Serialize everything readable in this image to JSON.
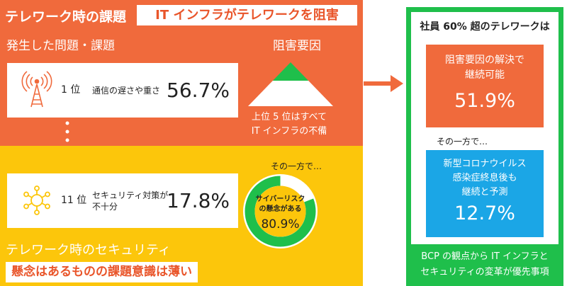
{
  "left": {
    "title": "テレワーク時の課題",
    "title_badge": "IT インフラがテレワークを阻害",
    "subtitle": "発生した問題・課題",
    "cause_label": "阻害要因",
    "items": [
      {
        "rank": "1 位",
        "label": "通信の遅さや重さ",
        "value": "56.7%",
        "icon": "antenna-icon"
      },
      {
        "rank": "11 位",
        "label_line1": "セキュリティ対策が",
        "label_line2": "不十分",
        "value": "17.8%",
        "icon": "sun-icon"
      }
    ],
    "pyramid_caption_line1": "上位 5 位はすべて",
    "pyramid_caption_line2": "IT インフラの不備",
    "donut_caption": "その一方で…",
    "donut_label_line1": "サイバーリスク",
    "donut_label_line2": "の懸念がある",
    "donut_value": "80.9%",
    "donut_fraction": 0.809,
    "security_title": "テレワーク時のセキュリティ",
    "security_badge": "懸念はあるものの課題意識は薄い"
  },
  "right": {
    "heading": "社員 60% 超のテレワークは",
    "orange_line1": "阻害要因の解決で",
    "orange_line2": "継続可能",
    "orange_value": "51.9%",
    "other_label": "その一方で…",
    "blue_line1": "新型コロナウイルス",
    "blue_line2": "感染症終息後も",
    "blue_line3": "継続と予測",
    "blue_value": "12.7%",
    "footer_line1": "BCP の観点から IT インフラと",
    "footer_line2": "セキュリティの変革が優先事項"
  },
  "colors": {
    "orange": "#f06a3c",
    "yellow": "#fcc60b",
    "green": "#1fbf4b",
    "blue": "#1ba6e6"
  }
}
